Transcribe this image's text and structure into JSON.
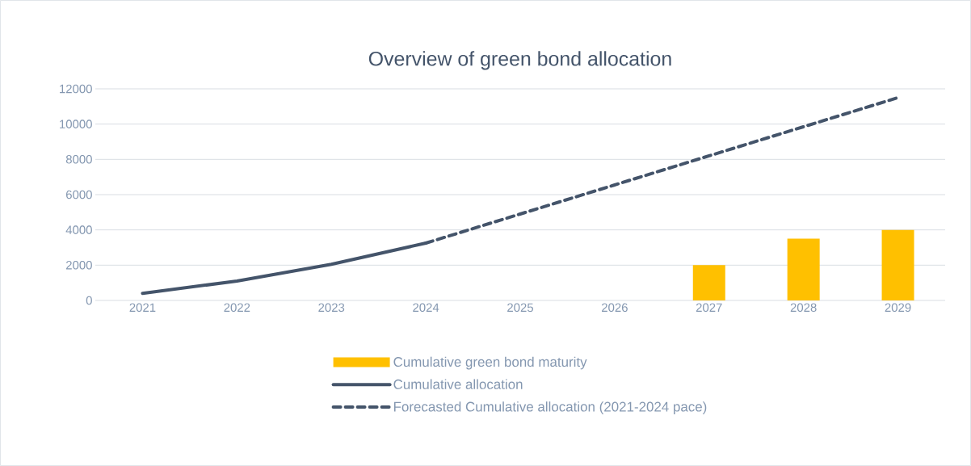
{
  "chart_data": {
    "type": "line",
    "title": "Overview of green bond allocation",
    "categories": [
      "2021",
      "2022",
      "2023",
      "2024",
      "2025",
      "2026",
      "2027",
      "2028",
      "2029"
    ],
    "series": [
      {
        "name": "Cumulative green bond maturity",
        "type": "bar",
        "color": "#ffc000",
        "values": [
          null,
          null,
          null,
          null,
          null,
          null,
          2000,
          3500,
          4000
        ]
      },
      {
        "name": "Cumulative allocation",
        "color": "#44546a",
        "line_style": "solid",
        "values": [
          400,
          1100,
          2050,
          3250,
          null,
          null,
          null,
          null,
          null
        ]
      },
      {
        "name": "Forecasted Cumulative allocation (2021-2024 pace)",
        "color": "#44546a",
        "line_style": "dashed",
        "values": [
          null,
          null,
          null,
          3250,
          4900,
          6550,
          8200,
          9850,
          11500
        ]
      }
    ],
    "ylim": [
      0,
      12000
    ],
    "yticks": [
      0,
      2000,
      4000,
      6000,
      8000,
      10000,
      12000
    ],
    "grid": "y",
    "legend": "bottom"
  }
}
